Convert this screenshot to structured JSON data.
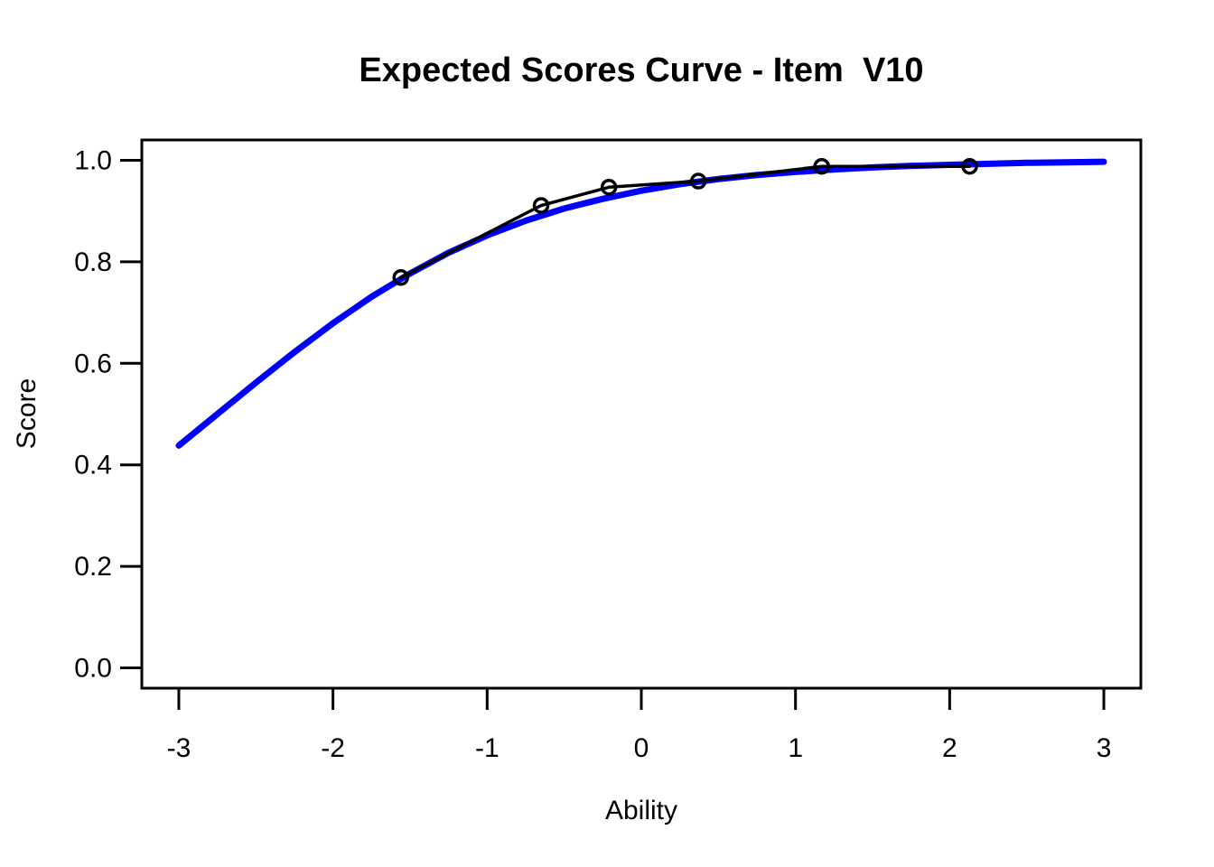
{
  "figure": {
    "background_color": "#FFFFFF",
    "foreground_color": "#000000"
  },
  "chart_data": {
    "type": "line",
    "title": "Expected Scores Curve - Item  V10",
    "xlabel": "Ability",
    "ylabel": "Score",
    "xlim": [
      -3.24,
      3.24
    ],
    "ylim": [
      -0.04,
      1.04
    ],
    "grid": false,
    "legend": null,
    "x_ticks": [
      -3,
      -2,
      -1,
      0,
      1,
      2,
      3
    ],
    "x_tick_labels": [
      "-3",
      "-2",
      "-1",
      "0",
      "1",
      "2",
      "3"
    ],
    "y_ticks": [
      0.0,
      0.2,
      0.4,
      0.6,
      0.8,
      1.0
    ],
    "y_tick_labels": [
      "0.0",
      "0.2",
      "0.4",
      "0.6",
      "0.8",
      "1.0"
    ],
    "series": [
      {
        "name": "model-expected-score-curve",
        "type": "line",
        "color": "#0000FF",
        "linewidth": 7,
        "marker": "none",
        "x": [
          -3,
          -2.75,
          -2.5,
          -2.25,
          -2,
          -1.75,
          -1.5,
          -1.25,
          -1,
          -0.75,
          -0.5,
          -0.25,
          0,
          0.25,
          0.5,
          0.75,
          1,
          1.25,
          1.5,
          1.75,
          2,
          2.25,
          2.5,
          2.75,
          3
        ],
        "y": [
          0.438,
          0.5,
          0.562,
          0.622,
          0.679,
          0.731,
          0.777,
          0.818,
          0.852,
          0.881,
          0.905,
          0.924,
          0.94,
          0.953,
          0.963,
          0.971,
          0.977,
          0.982,
          0.986,
          0.989,
          0.991,
          0.993,
          0.995,
          0.996,
          0.997
        ]
      },
      {
        "name": "observed-score-points",
        "type": "line+markers",
        "color": "#000000",
        "linewidth": 3.5,
        "marker": "open-circle",
        "x": [
          -1.56,
          -0.65,
          -0.21,
          0.37,
          1.17,
          2.13
        ],
        "y": [
          0.769,
          0.911,
          0.947,
          0.959,
          0.988,
          0.988
        ]
      }
    ]
  }
}
